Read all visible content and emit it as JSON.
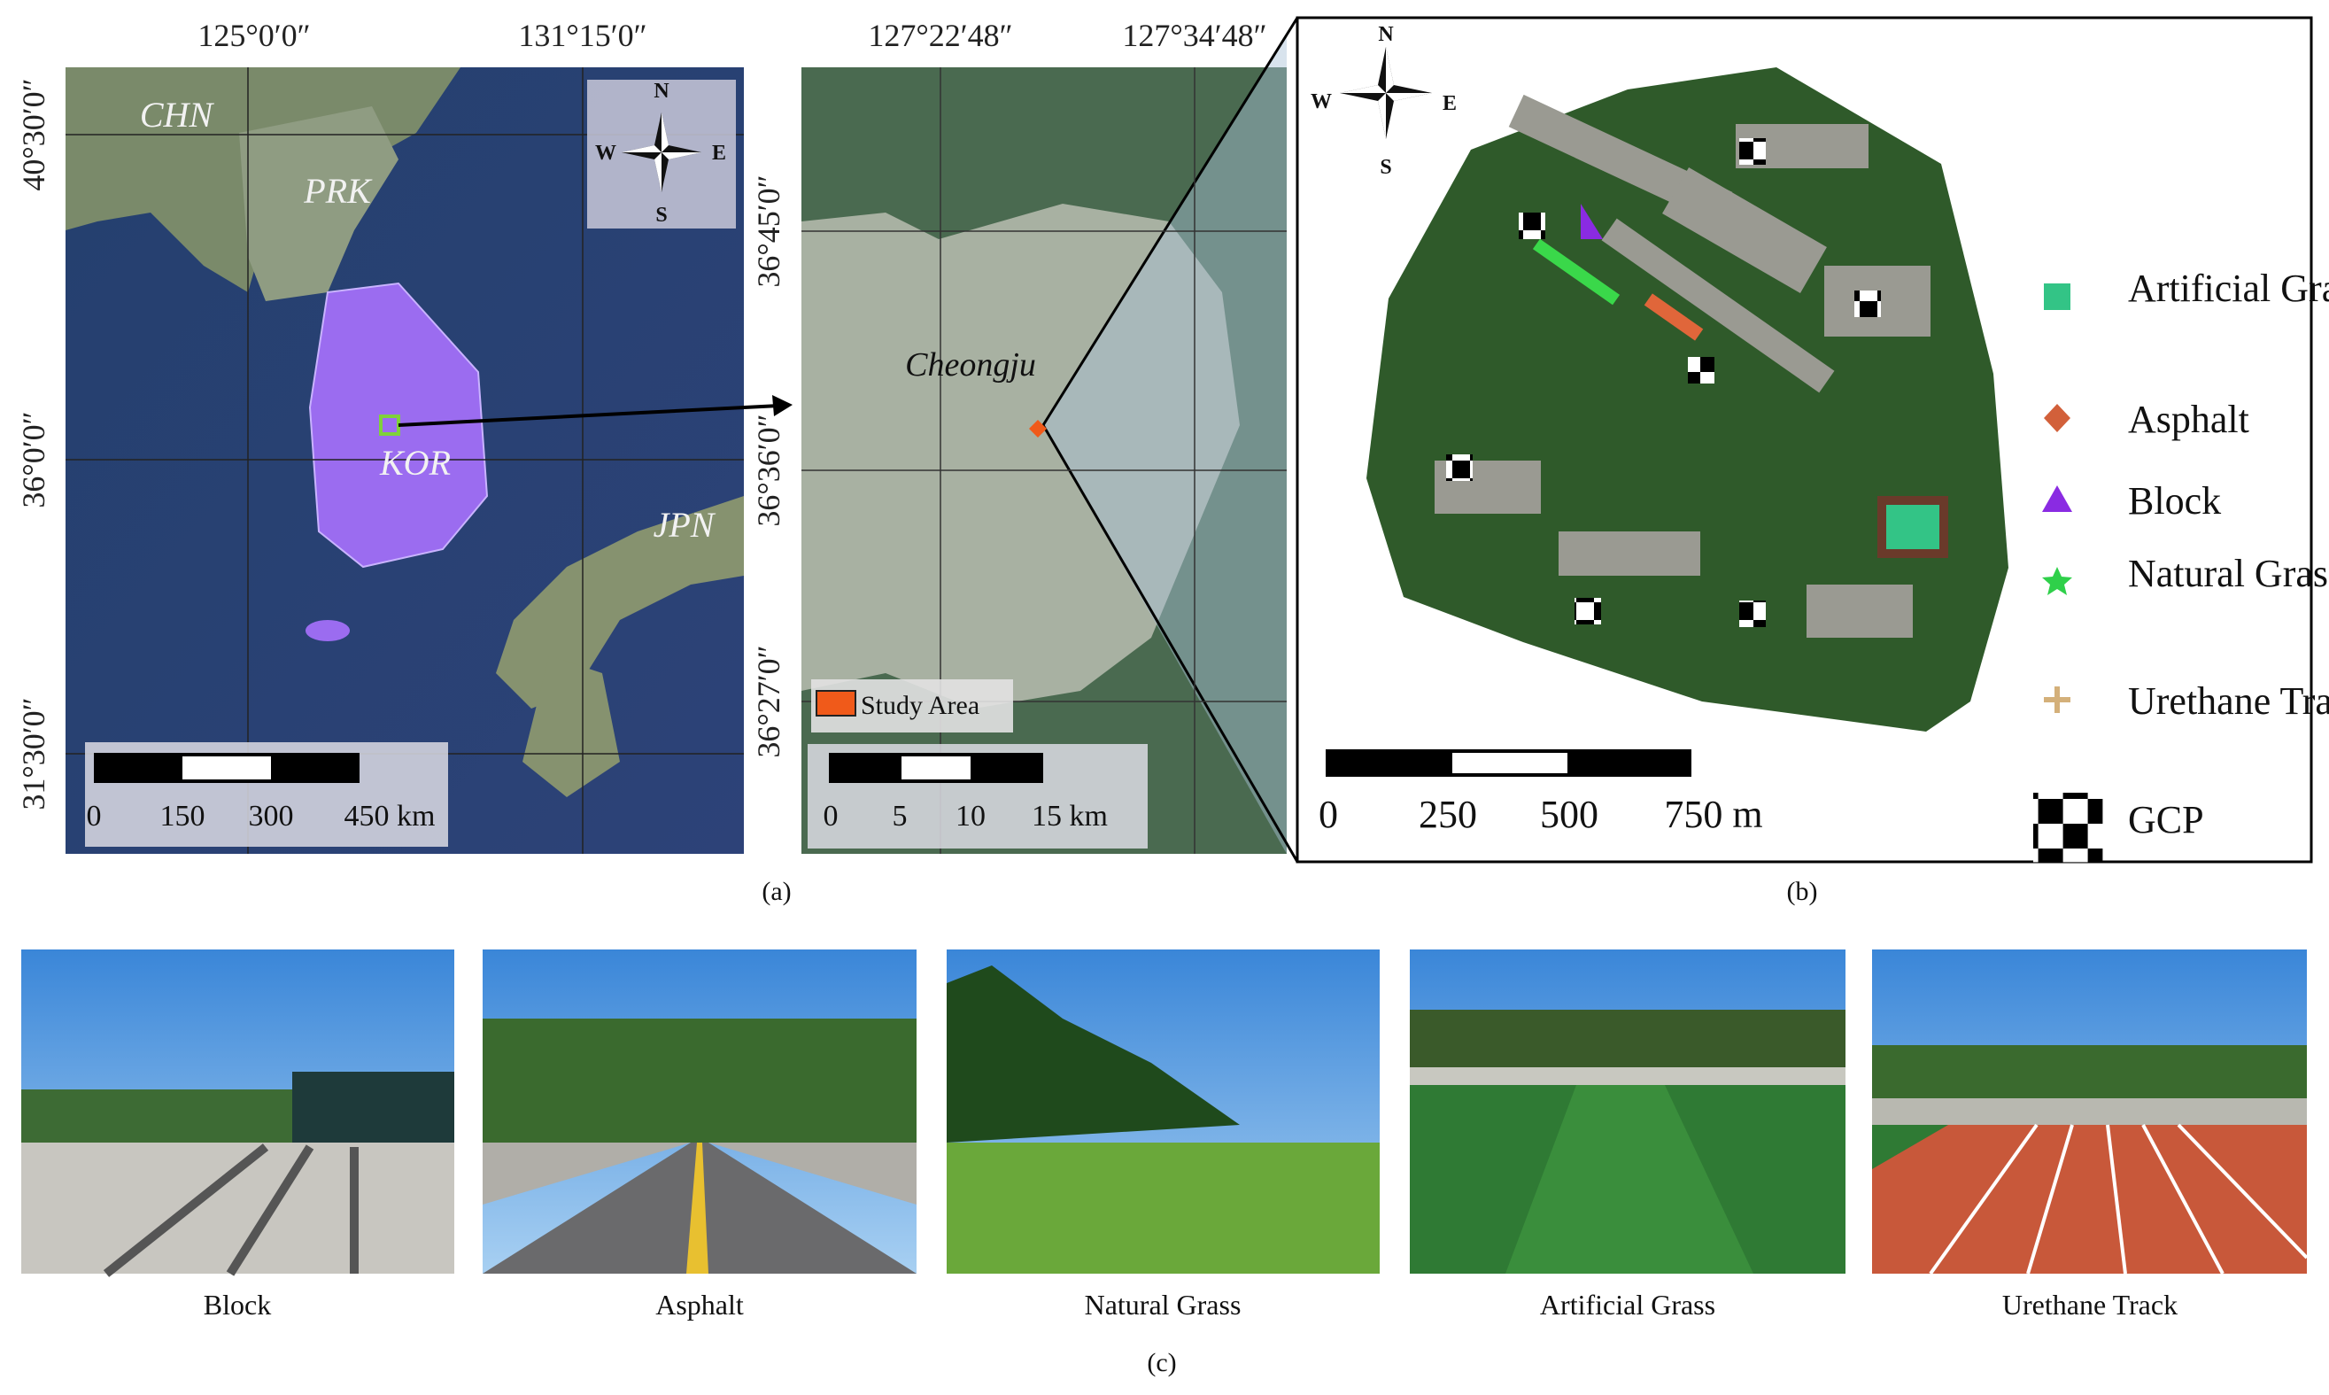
{
  "panel_a": {
    "label": "(a)",
    "lon_labels": [
      "125°0′0″",
      "131°15′0″"
    ],
    "lat_labels": [
      "40°30′0″",
      "36°0′0″",
      "31°30′0″"
    ],
    "countries": [
      "CHN",
      "PRK",
      "KOR",
      "JPN"
    ],
    "scale_labels": [
      "0",
      "150",
      "300",
      "450 km"
    ],
    "compass": [
      "N",
      "S",
      "W",
      "E"
    ]
  },
  "panel_inset": {
    "lon_labels": [
      "127°22′48″",
      "127°34′48″"
    ],
    "lat_labels": [
      "36°45′0″",
      "36°36′0″",
      "36°27′0″"
    ],
    "city": "Cheongju",
    "legend": "Study Area",
    "scale_labels": [
      "0",
      "5",
      "10",
      "15 km"
    ]
  },
  "panel_b": {
    "label": "(b)",
    "compass": [
      "N",
      "S",
      "W",
      "E"
    ],
    "legend": [
      "Artificial Grass",
      "Asphalt",
      "Block",
      "Natural Grass",
      "Urethane Track",
      "GCP"
    ],
    "scale_labels": [
      "0",
      "250",
      "500",
      "750 m"
    ]
  },
  "panel_c": {
    "label": "(c)",
    "photos": [
      "Block",
      "Asphalt",
      "Natural Grass",
      "Artificial Grass",
      "Urethane Track"
    ]
  }
}
